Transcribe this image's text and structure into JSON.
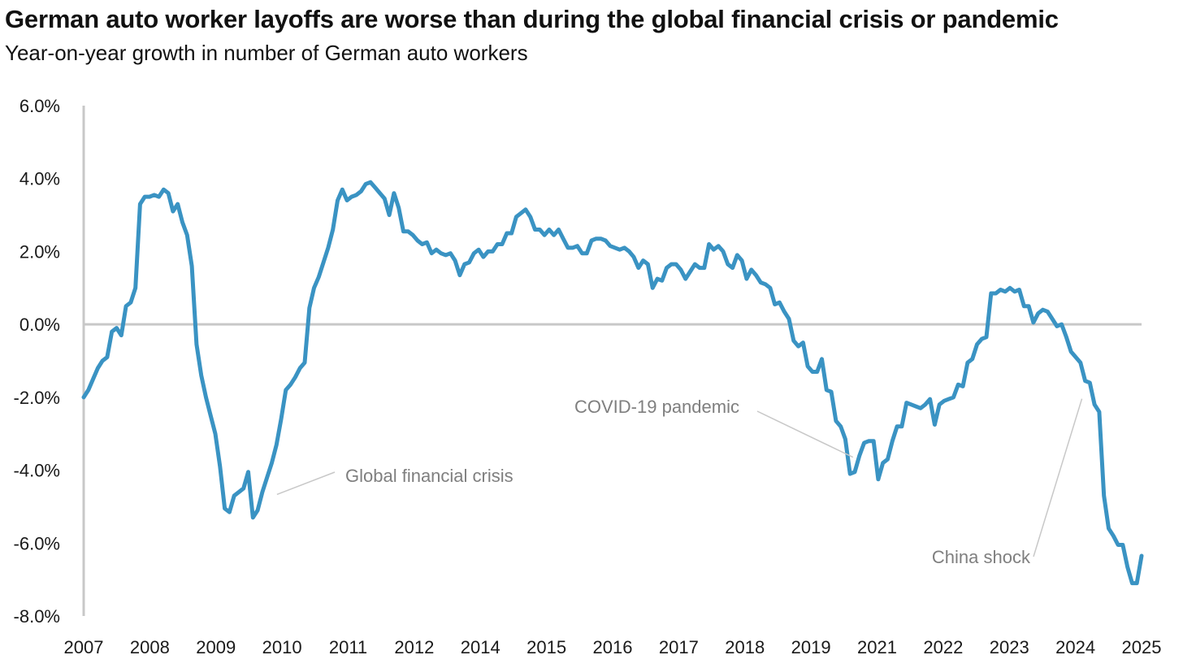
{
  "chart_data": {
    "type": "line",
    "title": "German auto worker layoffs are worse than during the global financial crisis or pandemic",
    "subtitle": "Year-on-year growth in number of German auto workers",
    "xlabel": "",
    "ylabel": "",
    "x_ticks": [
      "2007",
      "2008",
      "2009",
      "2010",
      "2011",
      "2012",
      "2014",
      "2015",
      "2016",
      "2017",
      "2018",
      "2019",
      "2021",
      "2022",
      "2023",
      "2024",
      "2025"
    ],
    "y_ticks": [
      "6.0%",
      "4.0%",
      "2.0%",
      "0.0%",
      "-2.0%",
      "-4.0%",
      "-6.0%",
      "-8.0%"
    ],
    "ylim": [
      -8,
      6
    ],
    "grid": false,
    "legend": "none",
    "series_color": "#3a93c3",
    "zero_line_color": "#c8c8c8",
    "series": [
      {
        "values": [
          -2.0,
          -1.8,
          -1.5,
          -1.2,
          -1.0,
          -0.9,
          -0.2,
          -0.1,
          -0.3,
          0.5,
          0.6,
          1.0,
          3.3,
          3.5,
          3.5,
          3.55,
          3.5,
          3.7,
          3.6,
          3.1,
          3.3,
          2.8,
          2.45,
          1.6,
          -0.55,
          -1.4,
          -2.0,
          -2.5,
          -3.0,
          -3.9,
          -5.05,
          -5.15,
          -4.7,
          -4.6,
          -4.5,
          -4.05,
          -5.3,
          -5.1,
          -4.6,
          -4.2,
          -3.8,
          -3.3,
          -2.6,
          -1.8,
          -1.65,
          -1.45,
          -1.2,
          -1.05,
          0.45,
          1.0,
          1.3,
          1.7,
          2.1,
          2.6,
          3.4,
          3.7,
          3.4,
          3.5,
          3.55,
          3.65,
          3.85,
          3.9,
          3.75,
          3.6,
          3.45,
          3.0,
          3.6,
          3.2,
          2.55,
          2.55,
          2.45,
          2.3,
          2.2,
          2.25,
          1.95,
          2.05,
          1.95,
          1.9,
          1.95,
          1.75,
          1.35,
          1.65,
          1.7,
          1.95,
          2.05,
          1.85,
          2.0,
          2.0,
          2.2,
          2.2,
          2.5,
          2.5,
          2.95,
          3.05,
          3.15,
          2.95,
          2.6,
          2.6,
          2.45,
          2.6,
          2.45,
          2.6,
          2.35,
          2.1,
          2.1,
          2.15,
          1.95,
          1.95,
          2.3,
          2.35,
          2.35,
          2.3,
          2.15,
          2.1,
          2.05,
          2.1,
          2.0,
          1.85,
          1.55,
          1.75,
          1.65,
          1.0,
          1.25,
          1.2,
          1.55,
          1.65,
          1.65,
          1.5,
          1.25,
          1.45,
          1.65,
          1.55,
          1.55,
          2.2,
          2.05,
          2.15,
          2.0,
          1.65,
          1.55,
          1.9,
          1.75,
          1.25,
          1.5,
          1.35,
          1.15,
          1.1,
          1.0,
          0.55,
          0.6,
          0.35,
          0.15,
          -0.45,
          -0.6,
          -0.5,
          -1.15,
          -1.3,
          -1.3,
          -0.95,
          -1.8,
          -1.85,
          -2.65,
          -2.8,
          -3.15,
          -4.1,
          -4.05,
          -3.6,
          -3.25,
          -3.2,
          -3.2,
          -4.25,
          -3.8,
          -3.7,
          -3.2,
          -2.8,
          -2.8,
          -2.15,
          -2.2,
          -2.25,
          -2.3,
          -2.2,
          -2.05,
          -2.75,
          -2.2,
          -2.1,
          -2.05,
          -2.0,
          -1.65,
          -1.7,
          -1.05,
          -0.95,
          -0.55,
          -0.4,
          -0.35,
          0.85,
          0.85,
          0.95,
          0.9,
          1.0,
          0.9,
          0.95,
          0.5,
          0.5,
          0.05,
          0.3,
          0.4,
          0.35,
          0.15,
          -0.05,
          0.0,
          -0.35,
          -0.75,
          -0.9,
          -1.05,
          -1.55,
          -1.6,
          -2.2,
          -2.4,
          -4.7,
          -5.6,
          -5.8,
          -6.05,
          -6.05,
          -6.65,
          -7.1,
          -7.1,
          -6.35
        ]
      }
    ],
    "annotations": [
      {
        "text": "Global financial crisis",
        "point_index": 38
      },
      {
        "text": "COVID-19 pandemic",
        "point_index": 165
      },
      {
        "text": "China shock",
        "point_index": 213
      }
    ]
  }
}
